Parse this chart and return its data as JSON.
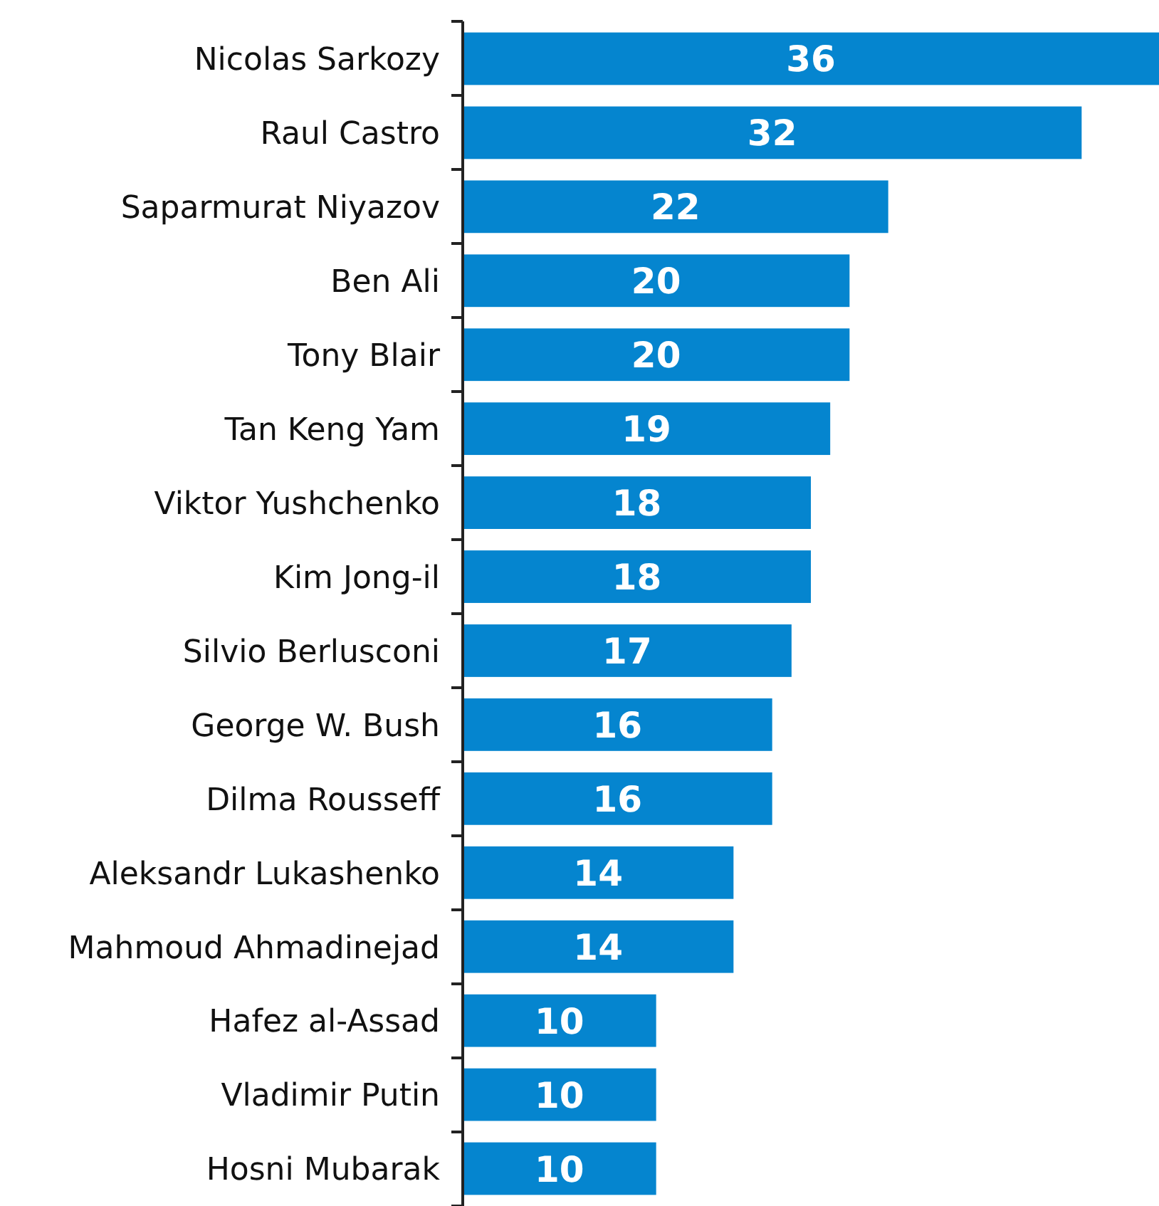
{
  "chart_data": {
    "type": "bar",
    "orientation": "horizontal",
    "categories": [
      "Nicolas Sarkozy",
      "Raul Castro",
      "Saparmurat Niyazov",
      "Ben Ali",
      "Tony Blair",
      "Tan Keng Yam",
      "Viktor Yushchenko",
      "Kim Jong-il",
      "Silvio Berlusconi",
      "George W. Bush",
      "Dilma Rousseff",
      "Aleksandr Lukashenko",
      "Mahmoud Ahmadinejad",
      "Hafez al-Assad",
      "Vladimir Putin",
      "Hosni Mubarak"
    ],
    "values": [
      36,
      32,
      22,
      20,
      20,
      19,
      18,
      18,
      17,
      16,
      16,
      14,
      14,
      10,
      10,
      10
    ],
    "data_labels": true,
    "color": "#0585cf"
  }
}
